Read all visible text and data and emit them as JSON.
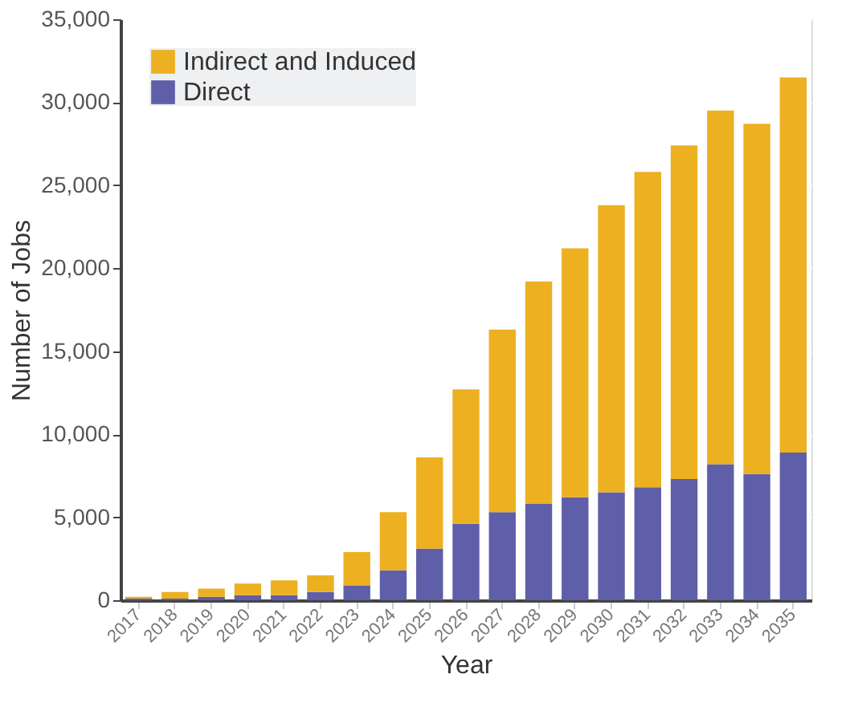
{
  "chart_data": {
    "type": "bar",
    "stacked": true,
    "xlabel": "Year",
    "ylabel": "Number of Jobs",
    "categories": [
      "2017",
      "2018",
      "2019",
      "2020",
      "2021",
      "2022",
      "2023",
      "2024",
      "2025",
      "2026",
      "2027",
      "2028",
      "2029",
      "2030",
      "2031",
      "2032",
      "2033",
      "2034",
      "2035"
    ],
    "series": [
      {
        "name": "Direct",
        "color": "#5f5ea8",
        "values": [
          100,
          100,
          200,
          300,
          300,
          500,
          900,
          1800,
          3100,
          4600,
          5300,
          5800,
          6200,
          6500,
          6800,
          7300,
          8200,
          7600,
          8900
        ]
      },
      {
        "name": "Indirect and Induced",
        "color": "#ecb021",
        "values": [
          100,
          400,
          500,
          700,
          900,
          1000,
          2000,
          3500,
          5500,
          8100,
          11000,
          13400,
          15000,
          17300,
          19000,
          20100,
          21300,
          21100,
          22600
        ]
      }
    ],
    "ylim": [
      0,
      35000
    ],
    "yticks": [
      0,
      {
        "value": 5000,
        "label": "5,000"
      },
      {
        "value": 10000,
        "label": "10,000"
      },
      {
        "value": 15000,
        "label": "15,000"
      },
      {
        "value": 20000,
        "label": "20,000"
      },
      {
        "value": 25000,
        "label": "25,000"
      },
      {
        "value": 30000,
        "label": "30,000"
      },
      {
        "value": 35000,
        "label": "35,000"
      }
    ],
    "grid": "y",
    "legend": "top left"
  }
}
